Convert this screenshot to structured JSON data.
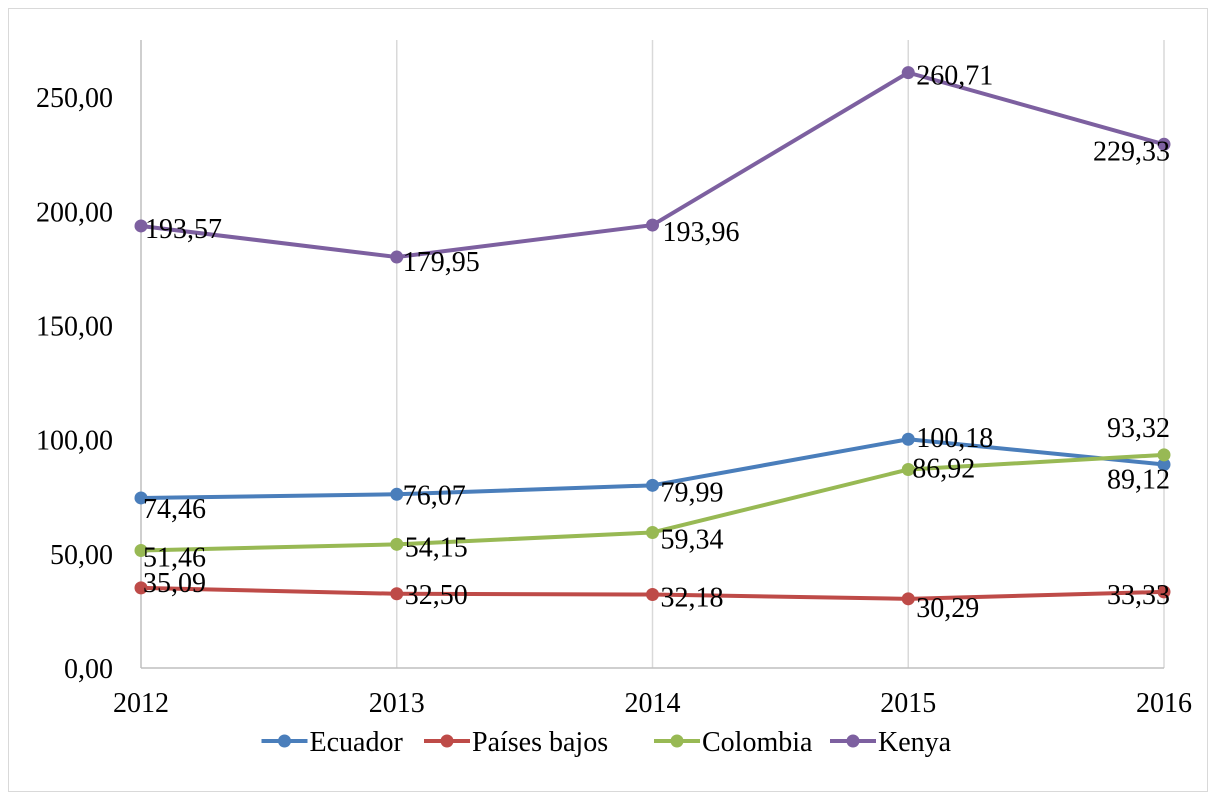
{
  "chart_data": {
    "type": "line",
    "title": "",
    "xlabel": "",
    "ylabel": "",
    "categories": [
      "2012",
      "2013",
      "2014",
      "2015",
      "2016"
    ],
    "ylim": [
      0,
      275
    ],
    "y_ticks": [
      0,
      50,
      100,
      150,
      200,
      250
    ],
    "y_tick_labels": [
      "0,00",
      "50,00",
      "100,00",
      "150,00",
      "200,00",
      "250,00"
    ],
    "grid": "vertical",
    "legend_position": "bottom",
    "series": [
      {
        "name": "Ecuador",
        "color": "#4a7ebb",
        "values": [
          74.46,
          76.07,
          79.99,
          100.18,
          89.12
        ],
        "labels": [
          "74,46",
          "76,07",
          "79,99",
          "100,18",
          "89,12"
        ]
      },
      {
        "name": "Países bajos",
        "color": "#be4b48",
        "values": [
          35.09,
          32.5,
          32.18,
          30.29,
          33.33
        ],
        "labels": [
          "35,09",
          "32,50",
          "32,18",
          "30,29",
          "33,33"
        ]
      },
      {
        "name": "Colombia",
        "color": "#98b954",
        "values": [
          51.46,
          54.15,
          59.34,
          86.92,
          93.32
        ],
        "labels": [
          "51,46",
          "54,15",
          "59,34",
          "86,92",
          "93,32"
        ]
      },
      {
        "name": "Kenya",
        "color": "#7d60a0",
        "values": [
          193.57,
          179.95,
          193.96,
          260.71,
          229.33
        ],
        "labels": [
          "193,57",
          "179,95",
          "193,96",
          "260,71",
          "229,33"
        ]
      }
    ]
  }
}
